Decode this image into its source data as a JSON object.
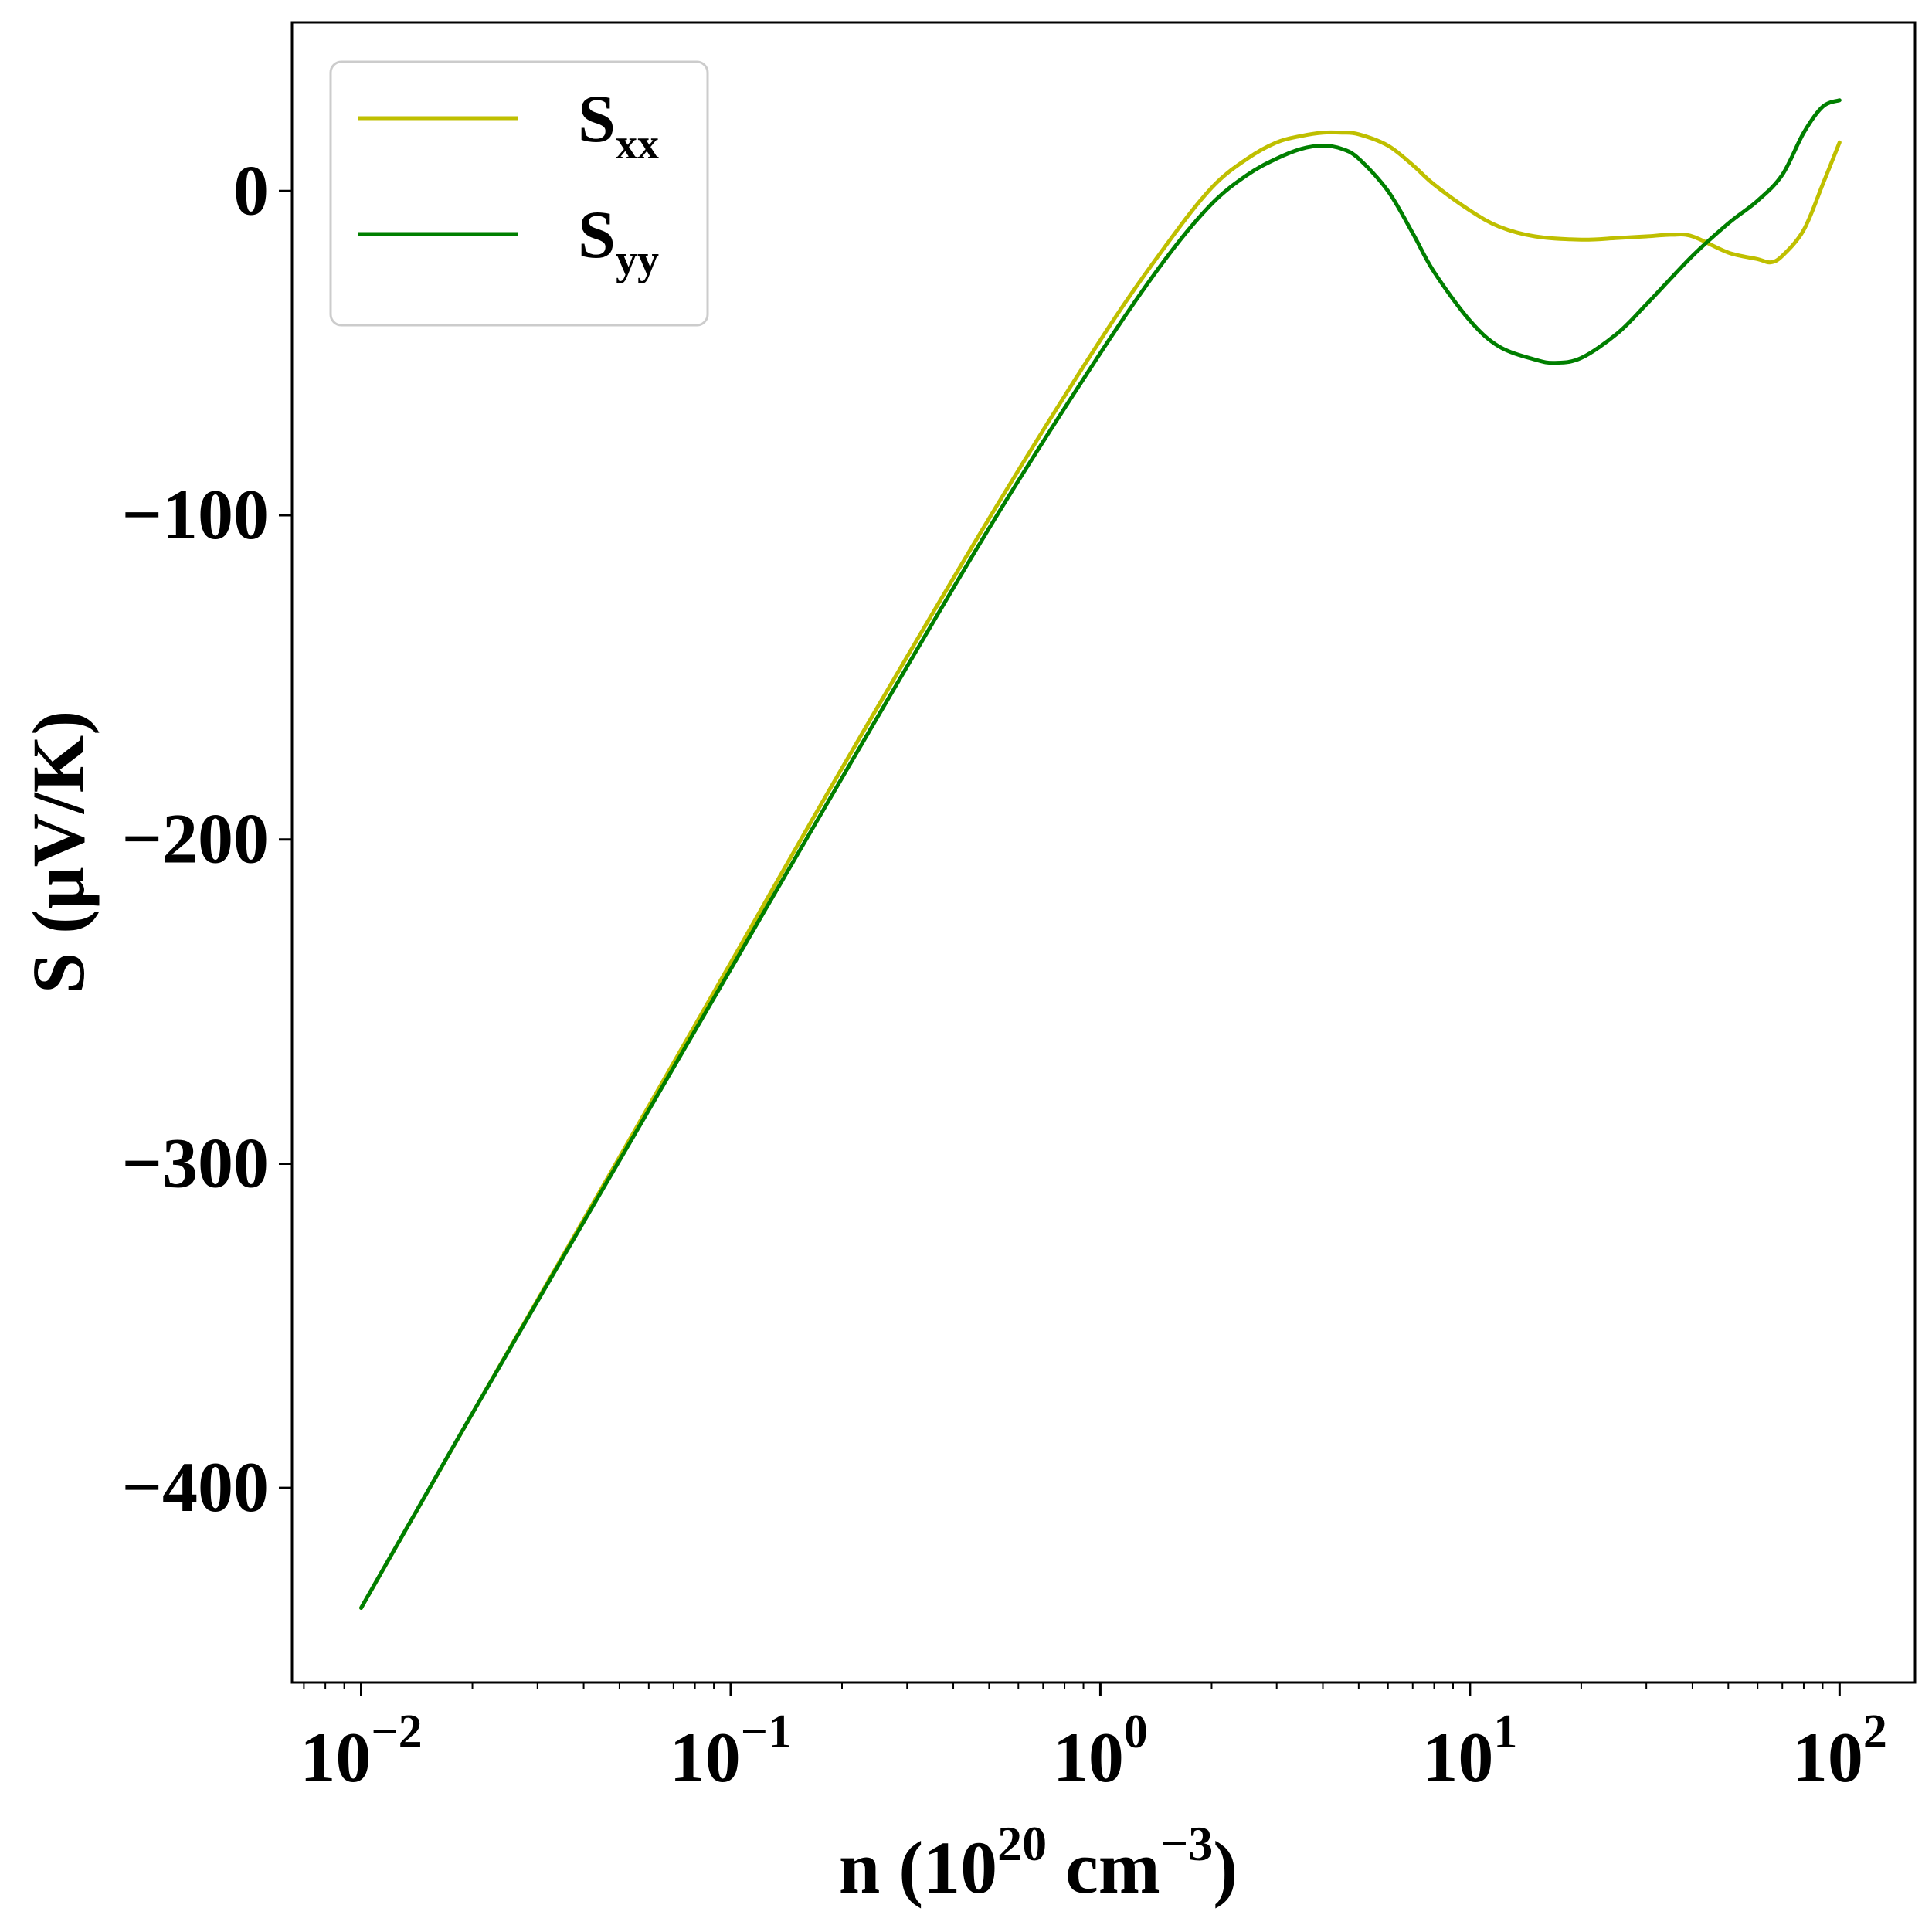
{
  "chart_data": {
    "type": "line",
    "xscale": "log",
    "xlim": [
      0.0065,
      160
    ],
    "ylim": [
      -460,
      52
    ],
    "xlabel": {
      "prefix": "n (10",
      "sup1": "20",
      "mid": " cm",
      "sup2": "−3",
      "suffix": ")"
    },
    "ylabel": "S (μV/K)",
    "xticks": [
      {
        "value": 0.01,
        "base": "10",
        "exp": "−2"
      },
      {
        "value": 0.1,
        "base": "10",
        "exp": "−1"
      },
      {
        "value": 1,
        "base": "10",
        "exp": "0"
      },
      {
        "value": 10,
        "base": "10",
        "exp": "1"
      },
      {
        "value": 100,
        "base": "10",
        "exp": "2"
      }
    ],
    "yticks": [
      {
        "value": 0,
        "label": "0"
      },
      {
        "value": -100,
        "label": "−100"
      },
      {
        "value": -200,
        "label": "−200"
      },
      {
        "value": -300,
        "label": "−300"
      },
      {
        "value": -400,
        "label": "−400"
      }
    ],
    "legend": {
      "location": "upper-left"
    },
    "series": [
      {
        "name_base": "S",
        "name_sub": "xx",
        "color": "#bfbf00",
        "points": [
          [
            0.01,
            -437
          ],
          [
            0.02,
            -377
          ],
          [
            0.05,
            -298
          ],
          [
            0.1,
            -238
          ],
          [
            0.2,
            -178
          ],
          [
            0.5,
            -101
          ],
          [
            1.0,
            -46
          ],
          [
            1.5,
            -17
          ],
          [
            2.0,
            1
          ],
          [
            2.5,
            10
          ],
          [
            3.0,
            15
          ],
          [
            3.5,
            17
          ],
          [
            4.0,
            18
          ],
          [
            4.5,
            18
          ],
          [
            5.0,
            17.5
          ],
          [
            6.0,
            14
          ],
          [
            7.0,
            8
          ],
          [
            8.0,
            2
          ],
          [
            10.0,
            -6
          ],
          [
            12.0,
            -11
          ],
          [
            15.0,
            -14
          ],
          [
            20.0,
            -15
          ],
          [
            25.0,
            -14.5
          ],
          [
            30.0,
            -14
          ],
          [
            35.0,
            -13.5
          ],
          [
            40.0,
            -14
          ],
          [
            50.0,
            -19
          ],
          [
            60.0,
            -21
          ],
          [
            65.0,
            -22
          ],
          [
            70.0,
            -20
          ],
          [
            80.0,
            -12
          ],
          [
            90.0,
            2
          ],
          [
            100.0,
            15
          ]
        ]
      },
      {
        "name_base": "S",
        "name_sub": "yy",
        "color": "#007f00",
        "points": [
          [
            0.01,
            -437
          ],
          [
            0.02,
            -377
          ],
          [
            0.05,
            -299
          ],
          [
            0.1,
            -240
          ],
          [
            0.2,
            -181
          ],
          [
            0.5,
            -104
          ],
          [
            1.0,
            -50
          ],
          [
            1.5,
            -21
          ],
          [
            2.0,
            -4
          ],
          [
            2.5,
            5
          ],
          [
            3.0,
            10
          ],
          [
            3.5,
            13
          ],
          [
            4.0,
            14
          ],
          [
            4.5,
            13
          ],
          [
            5.0,
            10
          ],
          [
            6.0,
            0
          ],
          [
            7.0,
            -13
          ],
          [
            8.0,
            -25
          ],
          [
            10.0,
            -40
          ],
          [
            12.0,
            -48
          ],
          [
            15.0,
            -52
          ],
          [
            17.0,
            -53
          ],
          [
            20.0,
            -51.5
          ],
          [
            25.0,
            -44
          ],
          [
            30.0,
            -35
          ],
          [
            40.0,
            -20
          ],
          [
            50.0,
            -10
          ],
          [
            60.0,
            -3
          ],
          [
            70.0,
            5
          ],
          [
            80.0,
            18
          ],
          [
            90.0,
            26
          ],
          [
            100.0,
            28
          ]
        ]
      }
    ]
  }
}
